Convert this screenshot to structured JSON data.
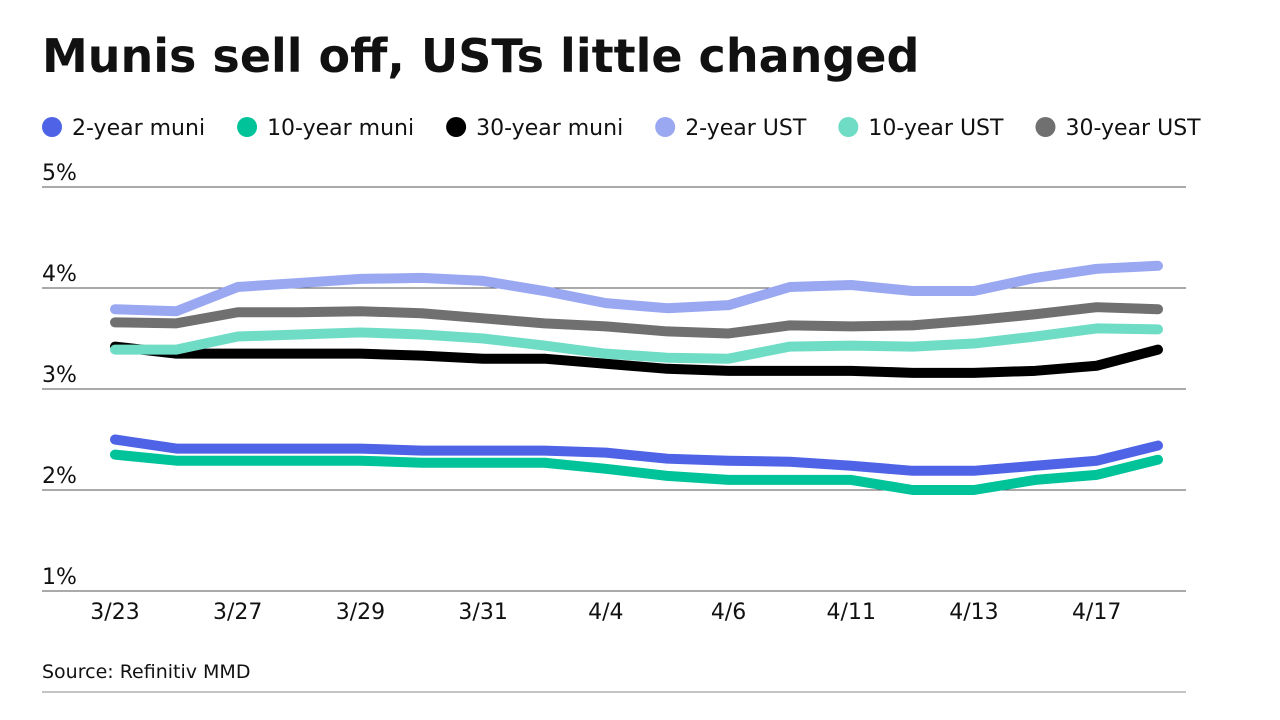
{
  "chart_data": {
    "type": "line",
    "title": "Munis sell off, USTs little changed",
    "source": "Source: Refinitiv MMD",
    "categories": [
      "3/23",
      null,
      "3/27",
      null,
      "3/29",
      null,
      "3/31",
      null,
      "4/4",
      null,
      "4/6",
      null,
      "4/11",
      null,
      "4/13",
      null,
      "4/17",
      null
    ],
    "series": [
      {
        "name": "2-year muni",
        "color": "#4f63e6",
        "values": [
          2.5,
          2.41,
          2.41,
          2.41,
          2.41,
          2.39,
          2.39,
          2.39,
          2.37,
          2.31,
          2.29,
          2.28,
          2.24,
          2.19,
          2.19,
          2.24,
          2.29,
          2.44
        ]
      },
      {
        "name": "10-year muni",
        "color": "#00c39a",
        "values": [
          2.35,
          2.29,
          2.29,
          2.29,
          2.29,
          2.27,
          2.27,
          2.27,
          2.21,
          2.14,
          2.1,
          2.1,
          2.1,
          2.0,
          2.0,
          2.1,
          2.15,
          2.3
        ]
      },
      {
        "name": "30-year muni",
        "color": "#000000",
        "values": [
          3.42,
          3.35,
          3.35,
          3.35,
          3.35,
          3.33,
          3.3,
          3.3,
          3.25,
          3.2,
          3.18,
          3.18,
          3.18,
          3.16,
          3.16,
          3.18,
          3.23,
          3.39
        ]
      },
      {
        "name": "2-year UST",
        "color": "#9aa8f2",
        "values": [
          3.79,
          3.77,
          4.01,
          4.05,
          4.09,
          4.1,
          4.07,
          3.97,
          3.85,
          3.8,
          3.83,
          4.01,
          4.03,
          3.97,
          3.97,
          4.1,
          4.19,
          4.22
        ]
      },
      {
        "name": "10-year UST",
        "color": "#6fdcc6",
        "values": [
          3.39,
          3.39,
          3.52,
          3.54,
          3.56,
          3.54,
          3.5,
          3.43,
          3.35,
          3.31,
          3.3,
          3.42,
          3.43,
          3.42,
          3.45,
          3.52,
          3.6,
          3.59
        ]
      },
      {
        "name": "30-year UST",
        "color": "#707070",
        "values": [
          3.66,
          3.65,
          3.76,
          3.76,
          3.77,
          3.75,
          3.7,
          3.65,
          3.62,
          3.57,
          3.55,
          3.63,
          3.62,
          3.63,
          3.68,
          3.74,
          3.81,
          3.79
        ]
      }
    ],
    "ylim": [
      1,
      5
    ],
    "yticks": [
      {
        "value": 1,
        "label": "1%"
      },
      {
        "value": 2,
        "label": "2%"
      },
      {
        "value": 3,
        "label": "3%"
      },
      {
        "value": 4,
        "label": "4%"
      },
      {
        "value": 5,
        "label": "5%"
      }
    ],
    "grid": true
  }
}
